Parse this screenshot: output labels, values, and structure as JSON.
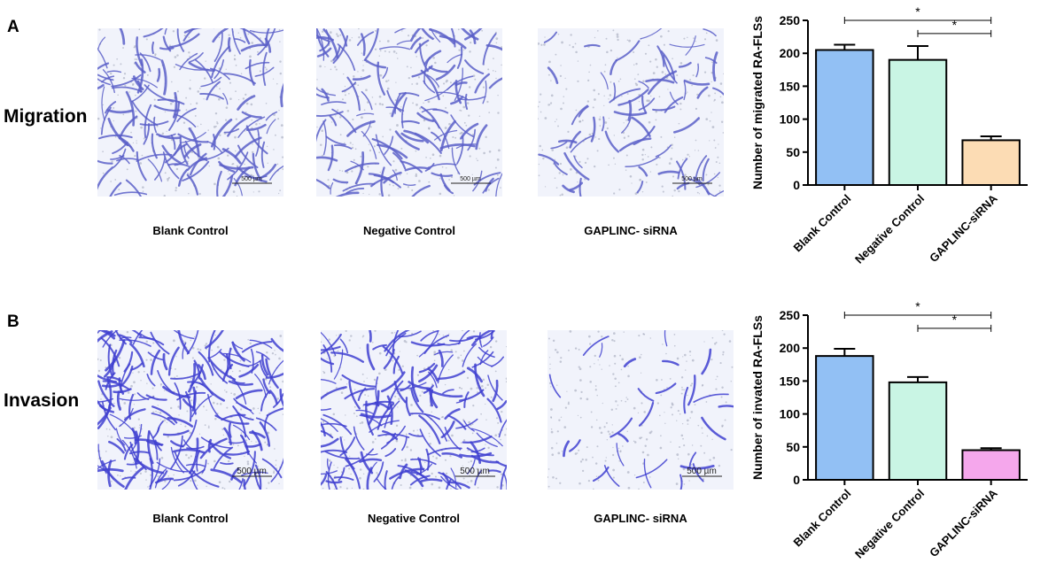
{
  "panels": [
    {
      "letter": "A",
      "row_label": "Migration",
      "images": [
        {
          "caption": "Blank Control",
          "scale_text": "500 µm",
          "density": 150,
          "stain": "#5b5fc8"
        },
        {
          "caption": "Negative Control",
          "scale_text": "500 µm",
          "density": 140,
          "stain": "#5b5fc8"
        },
        {
          "caption": "GAPLINC- siRNA",
          "scale_text": "500 µm",
          "density": 70,
          "stain": "#5b5fc8"
        }
      ]
    },
    {
      "letter": "B",
      "row_label": "Invasion",
      "images": [
        {
          "caption": "Blank Control",
          "scale_text": "500 µm",
          "density": 200,
          "stain": "#3f3fd0"
        },
        {
          "caption": "Negative Control",
          "scale_text": "500 µm",
          "density": 170,
          "stain": "#3f3fd0"
        },
        {
          "caption": "GAPLINC- siRNA",
          "scale_text": "500 µm",
          "density": 28,
          "stain": "#3f3fd0"
        }
      ]
    }
  ],
  "chart_data": [
    {
      "type": "bar",
      "categories": [
        "Blank Control",
        "Negative Control",
        "GAPLINC-siRNA"
      ],
      "values": [
        205,
        190,
        68
      ],
      "errors": [
        8,
        21,
        6
      ],
      "colors": [
        "#92c0f4",
        "#c9f5e4",
        "#fcdcb4"
      ],
      "ylabel": "Number of migrated RA-FLSs",
      "ylim": [
        0,
        250
      ],
      "yticks": [
        0,
        50,
        100,
        150,
        200,
        250
      ],
      "significance": [
        {
          "from": 0,
          "to": 2,
          "label": "*"
        },
        {
          "from": 1,
          "to": 2,
          "label": "*"
        }
      ]
    },
    {
      "type": "bar",
      "categories": [
        "Blank Control",
        "Negative Control",
        "GAPLINC-siRNA"
      ],
      "values": [
        188,
        148,
        45
      ],
      "errors": [
        11,
        8,
        3
      ],
      "colors": [
        "#92c0f4",
        "#c9f5e4",
        "#f5a7ec"
      ],
      "ylabel": "Number of invated RA-FLSs",
      "ylim": [
        0,
        250
      ],
      "yticks": [
        0,
        50,
        100,
        150,
        200,
        250
      ],
      "significance": [
        {
          "from": 0,
          "to": 2,
          "label": "*"
        },
        {
          "from": 1,
          "to": 2,
          "label": "*"
        }
      ]
    }
  ]
}
